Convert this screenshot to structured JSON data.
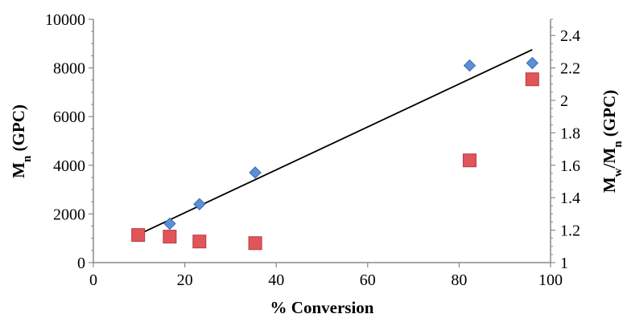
{
  "chart_data": {
    "type": "scatter",
    "xlabel": "% Conversion",
    "ylabel": "M<sub>n</sub> (GPC)",
    "ylabel_main": "M",
    "ylabel_sub": "n",
    "ylabel_rest": " (GPC)",
    "y2label_main1": "M",
    "y2label_sub1": "w",
    "y2label_mid": "/M",
    "y2label_sub2": "n",
    "y2label_rest": " (GPC)",
    "xlim": [
      0,
      100
    ],
    "ylim": [
      0,
      10000
    ],
    "y2lim": [
      1,
      2.5
    ],
    "x_ticks": [
      "0",
      "20",
      "40",
      "60",
      "80",
      "100"
    ],
    "y_ticks": [
      "0",
      "2000",
      "4000",
      "6000",
      "8000",
      "10000"
    ],
    "y2_ticks": [
      "1",
      "1.2",
      "1.4",
      "1.6",
      "1.8",
      "2",
      "2.2",
      "2.4"
    ],
    "grid": false,
    "series": [
      {
        "axis": "left",
        "marker": "diamond",
        "color": "#5b8fd6",
        "x": [
          9.8,
          16.7,
          23.2,
          35.4,
          82.3,
          96.0
        ],
        "y": [
          1150,
          1600,
          2400,
          3700,
          8100,
          8200
        ]
      },
      {
        "axis": "right",
        "marker": "square",
        "color": "#e0555a",
        "x": [
          9.8,
          16.7,
          23.2,
          35.4,
          82.3,
          96.0
        ],
        "y": [
          1.17,
          1.16,
          1.13,
          1.12,
          1.63,
          2.13
        ]
      }
    ],
    "trendline": {
      "axis": "left",
      "color": "#000000",
      "x": [
        9.8,
        96.0
      ],
      "y": [
        1150,
        8750
      ]
    }
  }
}
